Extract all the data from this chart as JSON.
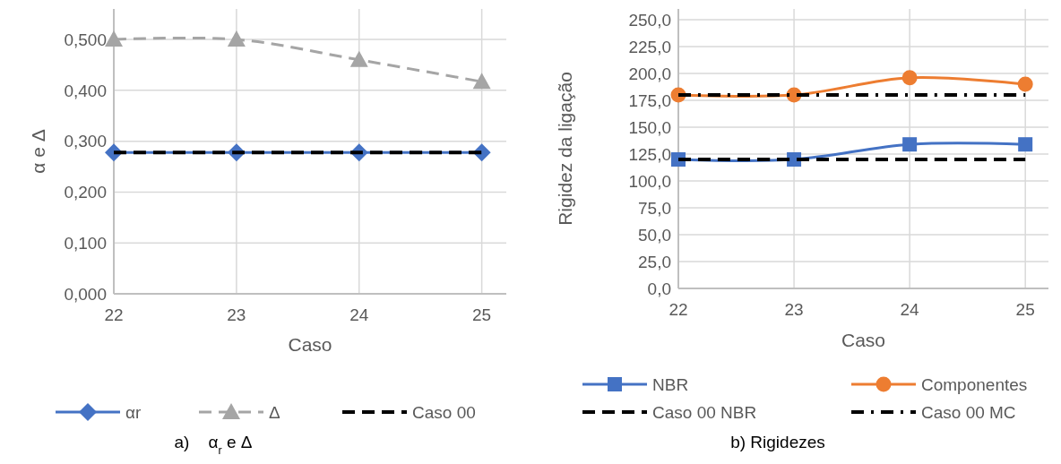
{
  "chart_data": [
    {
      "type": "line",
      "title": "a)    α$_{r}$ e Δ",
      "xlabel": "Caso",
      "ylabel": "α e Δ",
      "x": [
        22,
        23,
        24,
        25
      ],
      "xlim": [
        22,
        25.2
      ],
      "xticks": [
        22,
        23,
        24,
        25
      ],
      "ylim": [
        0,
        0.56
      ],
      "yticks": [
        {
          "value": 0,
          "label": "0,000"
        },
        {
          "value": 0.1,
          "label": "0,100"
        },
        {
          "value": 0.2,
          "label": "0,200"
        },
        {
          "value": 0.3,
          "label": "0,300"
        },
        {
          "value": 0.4,
          "label": "0,400"
        },
        {
          "value": 0.5,
          "label": "0,500"
        }
      ],
      "grid": true,
      "legend": "bottom",
      "series": [
        {
          "name": "αr",
          "color": "#4472c4",
          "values": [
            0.278,
            0.278,
            0.278,
            0.278
          ],
          "marker": "diamond",
          "line_style": "solid"
        },
        {
          "name": "Δ",
          "color": "#a5a5a5",
          "values": [
            0.5,
            0.5,
            0.46,
            0.417
          ],
          "marker": "triangle",
          "line_style": "dashed"
        },
        {
          "name": "Caso 00",
          "color": "#000000",
          "values": [
            0.278,
            0.278,
            0.278,
            0.278
          ],
          "marker": "none",
          "line_style": "dashed"
        }
      ]
    },
    {
      "type": "line",
      "title": "b) Rigidezes",
      "xlabel": "Caso",
      "ylabel": "Rigidez da ligação",
      "x": [
        22,
        23,
        24,
        25
      ],
      "xlim": [
        22,
        25.2
      ],
      "xticks": [
        22,
        23,
        24,
        25
      ],
      "ylim": [
        0,
        260
      ],
      "yticks": [
        {
          "value": 0,
          "label": "0,0"
        },
        {
          "value": 25,
          "label": "25,0"
        },
        {
          "value": 50,
          "label": "50,0"
        },
        {
          "value": 75,
          "label": "75,0"
        },
        {
          "value": 100,
          "label": "100,0"
        },
        {
          "value": 125,
          "label": "125,0"
        },
        {
          "value": 150,
          "label": "150,0"
        },
        {
          "value": 175,
          "label": "175,0"
        },
        {
          "value": 200,
          "label": "200,0"
        },
        {
          "value": 225,
          "label": "225,0"
        },
        {
          "value": 250,
          "label": "250,0"
        }
      ],
      "grid": true,
      "legend": "bottom",
      "series": [
        {
          "name": "NBR",
          "color": "#4472c4",
          "values": [
            120,
            120,
            134,
            134
          ],
          "marker": "square",
          "line_style": "solid"
        },
        {
          "name": "Componentes",
          "color": "#ed7d31",
          "values": [
            180,
            180,
            196,
            190
          ],
          "marker": "circle",
          "line_style": "solid"
        },
        {
          "name": "Caso 00 NBR",
          "color": "#000000",
          "values": [
            120,
            120,
            120,
            120
          ],
          "marker": "none",
          "line_style": "dashed"
        },
        {
          "name": "Caso 00 MC",
          "color": "#000000",
          "values": [
            180,
            180,
            180,
            180
          ],
          "marker": "none",
          "line_style": "dashdot"
        }
      ]
    }
  ]
}
